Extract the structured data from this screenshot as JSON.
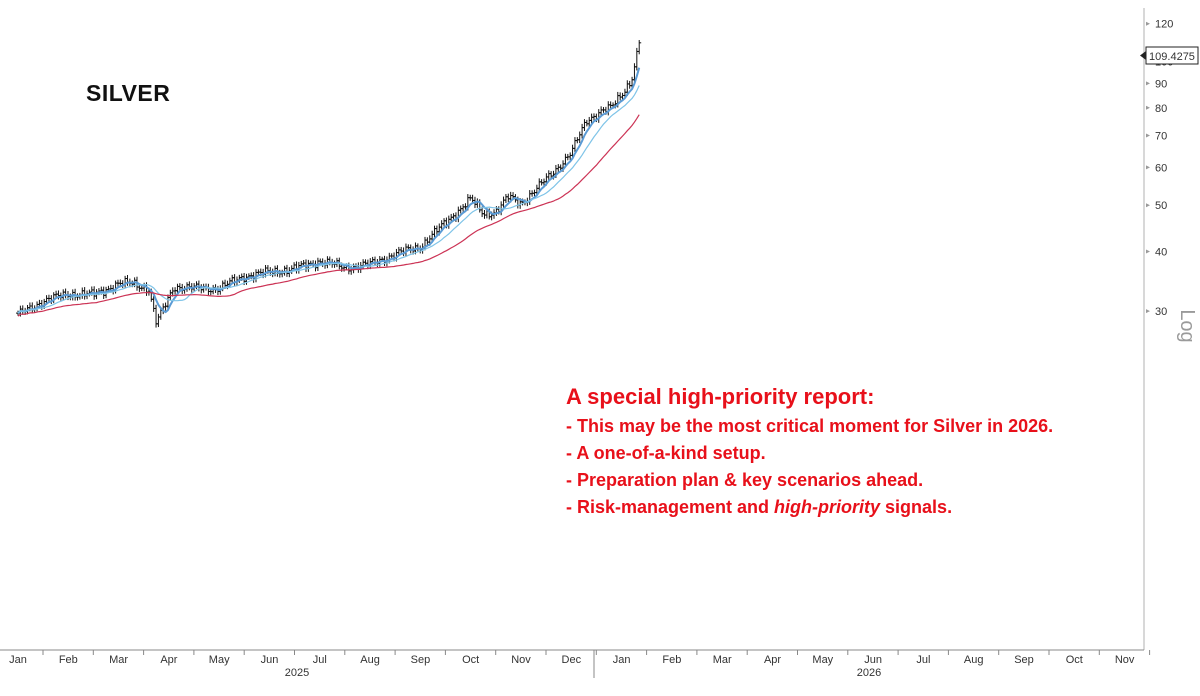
{
  "chart_data": {
    "type": "line",
    "subtype": "ohlc_bars_with_moving_averages",
    "title": "SILVER",
    "y_scale": "log",
    "scale_label": "Log",
    "ylim": [
      25,
      120
    ],
    "yticks": [
      30,
      40,
      50,
      60,
      70,
      80,
      90,
      100,
      120
    ],
    "last_value_label": "109.4275",
    "last_value": 109.4275,
    "x_months": [
      {
        "label": "Jan",
        "year": 2025
      },
      {
        "label": "Feb",
        "year": 2025
      },
      {
        "label": "Mar",
        "year": 2025
      },
      {
        "label": "Apr",
        "year": 2025
      },
      {
        "label": "May",
        "year": 2025
      },
      {
        "label": "Jun",
        "year": 2025
      },
      {
        "label": "Jul",
        "year": 2025
      },
      {
        "label": "Aug",
        "year": 2025
      },
      {
        "label": "Sep",
        "year": 2025
      },
      {
        "label": "Oct",
        "year": 2025
      },
      {
        "label": "Nov",
        "year": 2025
      },
      {
        "label": "Dec",
        "year": 2025
      },
      {
        "label": "Jan",
        "year": 2026
      },
      {
        "label": "Feb",
        "year": 2026
      },
      {
        "label": "Mar",
        "year": 2026
      },
      {
        "label": "Apr",
        "year": 2026
      },
      {
        "label": "May",
        "year": 2026
      },
      {
        "label": "Jun",
        "year": 2026
      },
      {
        "label": "Jul",
        "year": 2026
      },
      {
        "label": "Aug",
        "year": 2026
      },
      {
        "label": "Sep",
        "year": 2026
      },
      {
        "label": "Oct",
        "year": 2026
      },
      {
        "label": "Nov",
        "year": 2026
      }
    ],
    "years": [
      "2025",
      "2026"
    ],
    "price_anchors_month_index": [
      0,
      0.5,
      1,
      1.5,
      2,
      2.3,
      2.6,
      2.75,
      2.9,
      3.1,
      3.5,
      4,
      4.5,
      5,
      5.5,
      6,
      6.5,
      7,
      7.5,
      8,
      8.5,
      9,
      9.25,
      9.5,
      9.75,
      10,
      10.3,
      10.6,
      11,
      11.3,
      11.6,
      11.8,
      12,
      12.2,
      12.35
    ],
    "price_anchors_value": [
      29.5,
      31.5,
      32.6,
      32.5,
      34.2,
      34.3,
      33.4,
      28.3,
      30.5,
      33.8,
      33.5,
      33.5,
      35.5,
      36.2,
      36.8,
      38.2,
      37,
      37.6,
      39.5,
      41,
      46,
      51.5,
      48,
      48.5,
      52,
      50.5,
      54,
      58,
      64.5,
      75,
      79,
      80,
      85,
      92,
      109.4275
    ],
    "series": [
      {
        "name": "Short-term moving average",
        "color": "#5b9bd5",
        "window": 6
      },
      {
        "name": "Medium-term moving average",
        "color": "#7fc4e8",
        "window": 14
      },
      {
        "name": "Long-term moving average",
        "color": "#cc3355",
        "window": 34
      }
    ]
  },
  "report": {
    "heading": "A special high-priority report:",
    "bullets": [
      {
        "text": "- This may be the most critical moment for Silver in 2026.",
        "emphasis": ""
      },
      {
        "text": "- A one-of-a-kind setup.",
        "emphasis": ""
      },
      {
        "text": "- Preparation plan & key scenarios ahead.",
        "emphasis": ""
      },
      {
        "pre": "- Risk-management and ",
        "emphasis": "high-priority",
        "post": " signals."
      }
    ]
  },
  "colors": {
    "price_bars": "#111111",
    "ma_short": "#5b9bd5",
    "ma_mid": "#7fc4e8",
    "ma_long": "#cc3355",
    "report_text": "#e8101a",
    "axis": "#888888"
  }
}
